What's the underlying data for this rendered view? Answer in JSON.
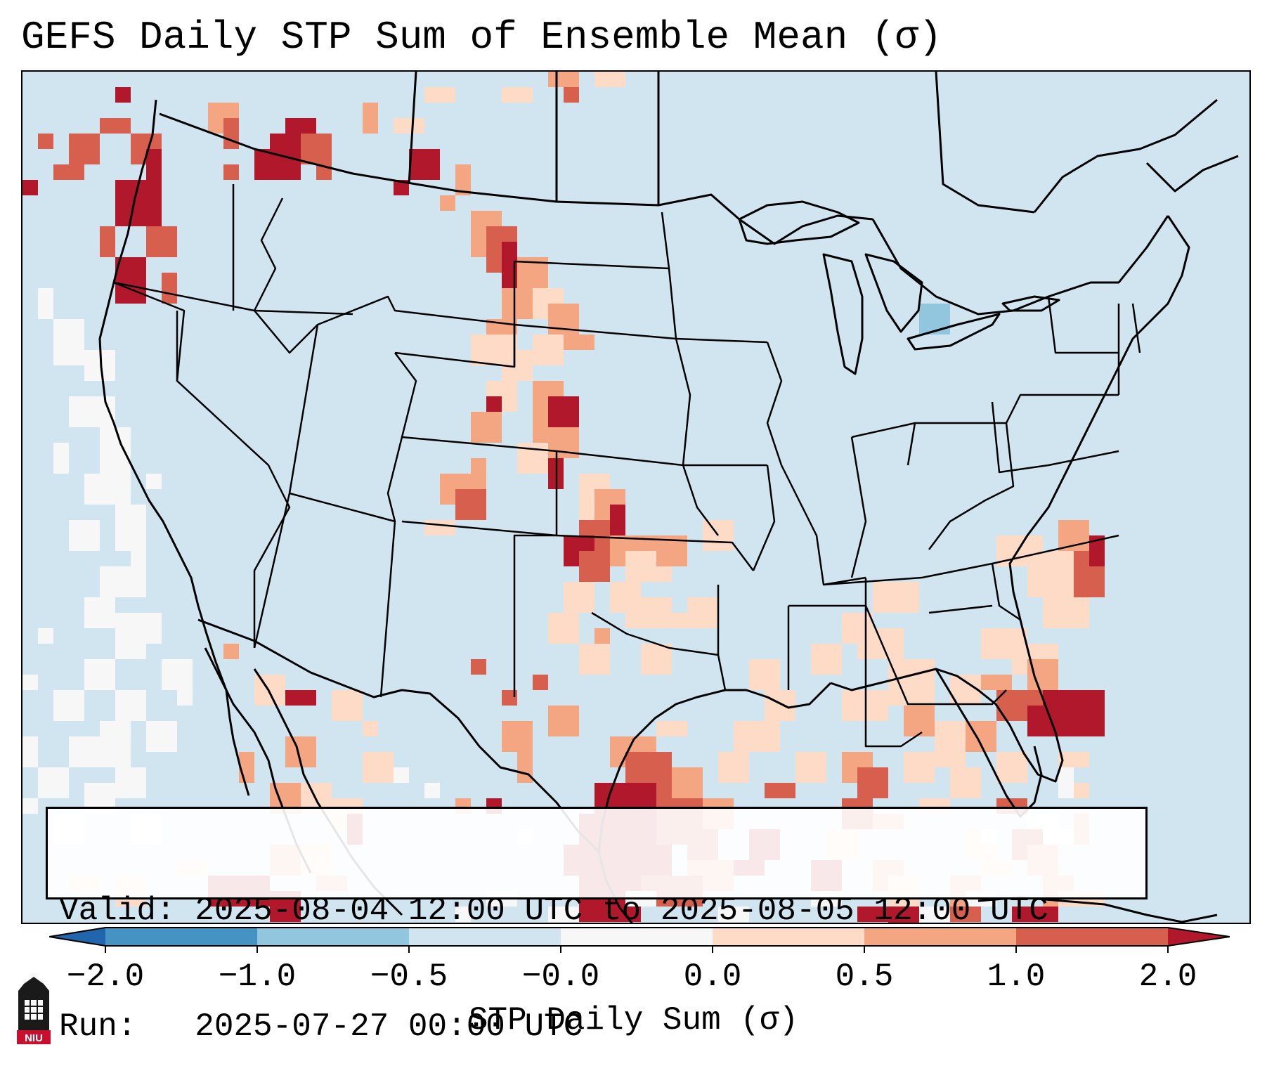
{
  "title": "GEFS Daily STP Sum of Ensemble Mean (σ)",
  "valid_line": "Valid: 2025-08-04 12:00 UTC to 2025-08-05 12:00 UTC",
  "run_line": "Run:   2025-07-27 00:00 UTC",
  "colorbar": {
    "label": "STP Daily Sum (σ)",
    "ticks": [
      "−2.0",
      "−1.0",
      "−0.5",
      "−0.0",
      "0.0",
      "0.5",
      "1.0",
      "2.0"
    ],
    "colors": [
      "#2166ac",
      "#4393c3",
      "#92c5de",
      "#d1e5f0",
      "#f7f7f7",
      "#fddbc7",
      "#f4a582",
      "#d6604d",
      "#b2182b"
    ]
  },
  "map": {
    "background_color": "#d1e5f0",
    "features": [
      "CONUS state boundaries",
      "Canada",
      "Mexico",
      "Gulf of Mexico",
      "Cuba"
    ]
  },
  "logo": {
    "name": "NIU",
    "text": "NIU",
    "color": "#c8102e"
  }
}
